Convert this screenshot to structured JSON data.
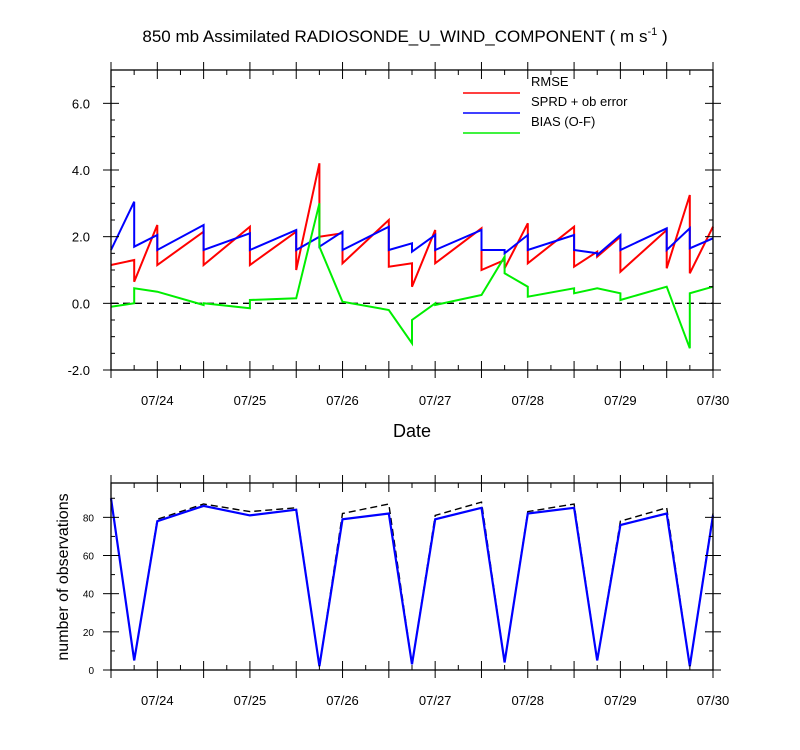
{
  "chart_data": [
    {
      "type": "line",
      "title": "850 mb Assimilated RADIOSONDE_U_WIND_COMPONENT ( m s",
      "title_sup": "-1",
      "title_end": " )",
      "xlabel": "Date",
      "ylabel": "",
      "x_ticks": [
        "07/24",
        "07/25",
        "07/26",
        "07/27",
        "07/28",
        "07/29",
        "07/30"
      ],
      "y_ticks": [
        "-2.0",
        "0.0",
        "2.0",
        "4.0",
        "6.0"
      ],
      "x_range": [
        0,
        6.5
      ],
      "y_range": [
        -2.0,
        7.0
      ],
      "zero_line": "dashed",
      "legend_position": "top-right",
      "series": [
        {
          "name": "RMSE",
          "color": "#ff0000",
          "points": [
            [
              0.0,
              1.15
            ],
            [
              0.25,
              1.3
            ],
            [
              0.25,
              0.65
            ],
            [
              0.5,
              2.35
            ],
            [
              0.5,
              1.15
            ],
            [
              1.0,
              2.15
            ],
            [
              1.0,
              1.15
            ],
            [
              1.5,
              2.3
            ],
            [
              1.5,
              1.15
            ],
            [
              2.0,
              2.15
            ],
            [
              2.0,
              1.0
            ],
            [
              2.25,
              4.2
            ],
            [
              2.25,
              2.0
            ],
            [
              2.5,
              2.1
            ],
            [
              2.5,
              1.2
            ],
            [
              3.0,
              2.5
            ],
            [
              3.0,
              1.1
            ],
            [
              3.25,
              1.2
            ],
            [
              3.25,
              0.5
            ],
            [
              3.5,
              2.2
            ],
            [
              3.5,
              1.2
            ],
            [
              4.0,
              2.25
            ],
            [
              4.0,
              1.0
            ],
            [
              4.25,
              1.3
            ],
            [
              4.25,
              1.05
            ],
            [
              4.5,
              2.4
            ],
            [
              4.5,
              1.2
            ],
            [
              5.0,
              2.3
            ],
            [
              5.0,
              1.1
            ],
            [
              5.25,
              1.55
            ],
            [
              5.25,
              1.4
            ],
            [
              5.5,
              2.0
            ],
            [
              5.5,
              0.95
            ],
            [
              6.0,
              2.2
            ],
            [
              6.0,
              1.05
            ],
            [
              6.25,
              3.25
            ],
            [
              6.25,
              0.9
            ],
            [
              6.5,
              2.3
            ]
          ]
        },
        {
          "name": "SPRD + ob error",
          "color": "#0000ff",
          "points": [
            [
              0.0,
              1.6
            ],
            [
              0.25,
              3.05
            ],
            [
              0.25,
              1.7
            ],
            [
              0.5,
              2.05
            ],
            [
              0.5,
              1.6
            ],
            [
              1.0,
              2.35
            ],
            [
              1.0,
              1.6
            ],
            [
              1.5,
              2.1
            ],
            [
              1.5,
              1.6
            ],
            [
              2.0,
              2.2
            ],
            [
              2.0,
              1.6
            ],
            [
              2.25,
              2.0
            ],
            [
              2.25,
              1.7
            ],
            [
              2.5,
              2.15
            ],
            [
              2.5,
              1.6
            ],
            [
              3.0,
              2.3
            ],
            [
              3.0,
              1.6
            ],
            [
              3.25,
              1.8
            ],
            [
              3.25,
              1.55
            ],
            [
              3.5,
              2.05
            ],
            [
              3.5,
              1.6
            ],
            [
              4.0,
              2.2
            ],
            [
              4.0,
              1.6
            ],
            [
              4.25,
              1.6
            ],
            [
              4.25,
              1.5
            ],
            [
              4.5,
              2.05
            ],
            [
              4.5,
              1.6
            ],
            [
              5.0,
              2.05
            ],
            [
              5.0,
              1.6
            ],
            [
              5.25,
              1.5
            ],
            [
              5.25,
              1.45
            ],
            [
              5.5,
              2.05
            ],
            [
              5.5,
              1.6
            ],
            [
              6.0,
              2.25
            ],
            [
              6.0,
              1.6
            ],
            [
              6.25,
              2.25
            ],
            [
              6.25,
              1.65
            ],
            [
              6.5,
              1.95
            ]
          ]
        },
        {
          "name": "BIAS (O-F)",
          "color": "#00ee00",
          "points": [
            [
              0.0,
              -0.1
            ],
            [
              0.25,
              0.0
            ],
            [
              0.25,
              0.45
            ],
            [
              0.5,
              0.35
            ],
            [
              1.0,
              -0.05
            ],
            [
              1.0,
              0.0
            ],
            [
              1.5,
              -0.15
            ],
            [
              1.5,
              0.1
            ],
            [
              2.0,
              0.15
            ],
            [
              2.25,
              3.0
            ],
            [
              2.25,
              1.7
            ],
            [
              2.5,
              0.05
            ],
            [
              3.0,
              -0.2
            ],
            [
              3.25,
              -1.2
            ],
            [
              3.25,
              -0.5
            ],
            [
              3.5,
              0.0
            ],
            [
              3.5,
              -0.05
            ],
            [
              4.0,
              0.25
            ],
            [
              4.25,
              1.4
            ],
            [
              4.25,
              0.9
            ],
            [
              4.5,
              0.5
            ],
            [
              4.5,
              0.2
            ],
            [
              5.0,
              0.45
            ],
            [
              5.0,
              0.3
            ],
            [
              5.25,
              0.45
            ],
            [
              5.5,
              0.3
            ],
            [
              5.5,
              0.1
            ],
            [
              6.0,
              0.5
            ],
            [
              6.25,
              -1.35
            ],
            [
              6.25,
              0.3
            ],
            [
              6.5,
              0.5
            ]
          ]
        }
      ]
    },
    {
      "type": "line",
      "title": "",
      "xlabel": "",
      "ylabel": "number of observations",
      "x_ticks": [
        "07/24",
        "07/25",
        "07/26",
        "07/27",
        "07/28",
        "07/29",
        "07/30"
      ],
      "y_ticks": [
        "0",
        "20",
        "40",
        "60",
        "80"
      ],
      "x_range": [
        0,
        6.5
      ],
      "y_range": [
        0,
        98
      ],
      "series": [
        {
          "color": "#0000ff",
          "style": "solid",
          "x": [
            0.0,
            0.25,
            0.5,
            1.0,
            1.5,
            2.0,
            2.25,
            2.5,
            3.0,
            3.25,
            3.5,
            4.0,
            4.25,
            4.5,
            5.0,
            5.25,
            5.5,
            6.0,
            6.25,
            6.5
          ],
          "values": [
            90,
            5,
            78,
            86,
            81,
            84,
            2,
            79,
            82,
            3,
            79,
            85,
            4,
            82,
            85,
            5,
            76,
            82,
            2,
            81
          ]
        },
        {
          "color": "#000000",
          "style": "dashed",
          "x": [
            0.0,
            0.25,
            0.5,
            1.0,
            1.5,
            2.0,
            2.25,
            2.5,
            3.0,
            3.25,
            3.5,
            4.0,
            4.25,
            4.5,
            5.0,
            5.25,
            5.5,
            6.0,
            6.25,
            6.5
          ],
          "values": [
            90,
            5,
            79,
            87,
            83,
            85,
            2,
            82,
            87,
            3,
            81,
            88,
            4,
            83,
            87,
            5,
            78,
            85,
            2,
            82
          ]
        }
      ]
    }
  ]
}
